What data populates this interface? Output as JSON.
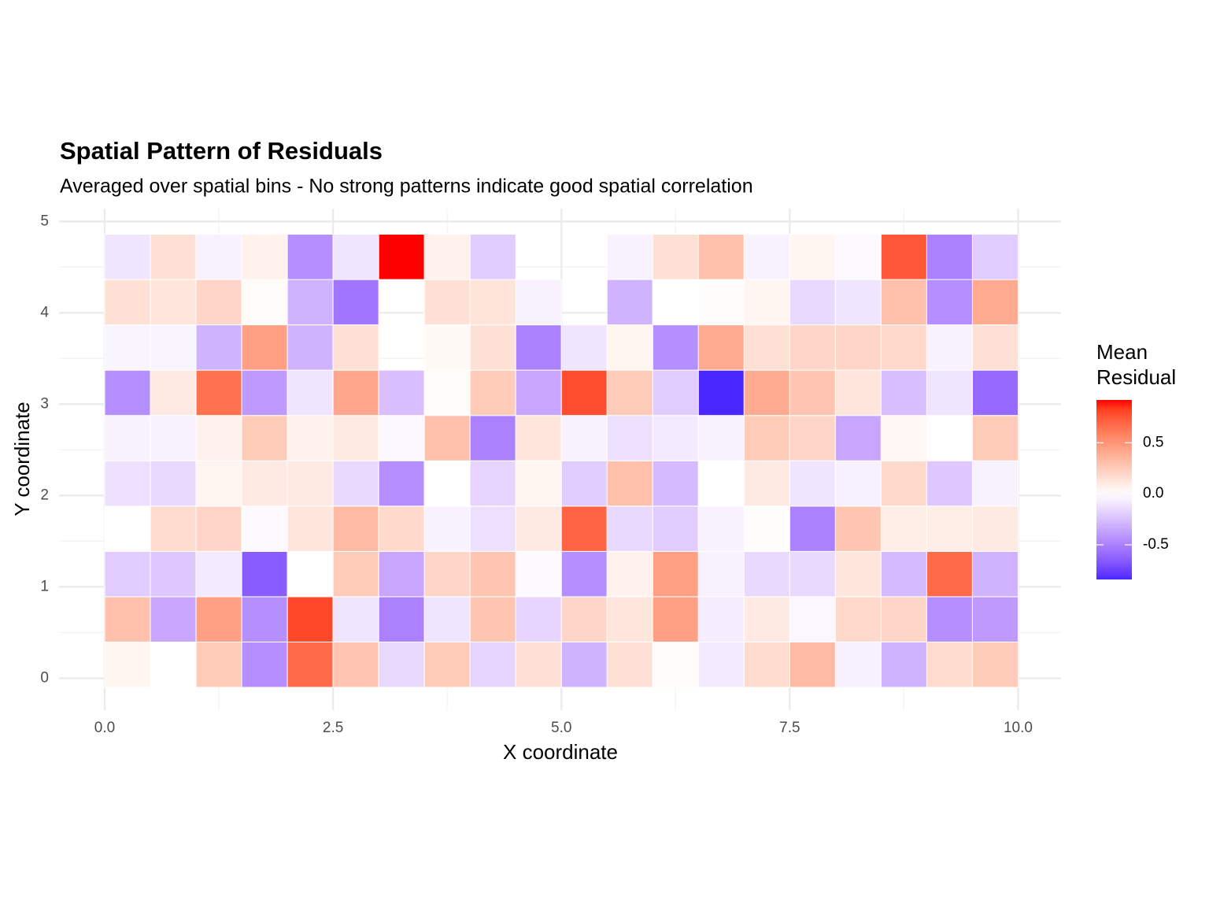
{
  "chart_data": {
    "type": "heatmap",
    "title": "Spatial Pattern of Residuals",
    "subtitle": "Averaged over spatial bins - No strong patterns indicate good spatial correlation",
    "x_label": "X coordinate",
    "y_label": "Y coordinate",
    "legend_title_lines": [
      "Mean",
      "Residual"
    ],
    "x": [
      0.25,
      0.75,
      1.25,
      1.75,
      2.25,
      2.75,
      3.25,
      3.75,
      4.25,
      4.75,
      5.25,
      5.75,
      6.25,
      6.75,
      7.25,
      7.75,
      8.25,
      8.75,
      9.25,
      9.75
    ],
    "y": [
      0.148,
      0.644,
      1.14,
      1.636,
      2.132,
      2.628,
      3.124,
      3.62,
      4.116,
      4.612
    ],
    "z": [
      [
        0.05,
        0,
        0.25,
        -0.45,
        0.68,
        0.28,
        -0.15,
        0.25,
        -0.17,
        0.15,
        -0.3,
        0.15,
        0.02,
        -0.08,
        0.17,
        0.33,
        -0.06,
        -0.3,
        0.17,
        0.25
      ],
      [
        0.3,
        -0.35,
        0.45,
        -0.45,
        0.8,
        -0.1,
        -0.5,
        -0.1,
        0.28,
        -0.17,
        0.2,
        0.12,
        0.45,
        -0.07,
        0.1,
        -0.03,
        0.18,
        0.2,
        -0.45,
        -0.4
      ],
      [
        -0.2,
        -0.22,
        -0.08,
        -0.65,
        0,
        0.25,
        -0.35,
        0.2,
        0.28,
        -0.02,
        -0.45,
        0.07,
        0.45,
        -0.05,
        -0.15,
        -0.15,
        0.12,
        -0.27,
        0.68,
        -0.3
      ],
      [
        0,
        0.17,
        0.2,
        -0.02,
        0.12,
        0.33,
        0.18,
        -0.05,
        -0.12,
        0.1,
        0.7,
        -0.15,
        -0.2,
        -0.05,
        0.01,
        -0.5,
        0.28,
        0.08,
        0.08,
        0.1
      ],
      [
        -0.12,
        -0.15,
        0.05,
        0.1,
        0.1,
        -0.15,
        -0.45,
        0,
        -0.17,
        0.05,
        -0.2,
        0.3,
        -0.27,
        0,
        0.1,
        -0.1,
        -0.06,
        0.18,
        -0.22,
        -0.05
      ],
      [
        -0.05,
        -0.05,
        0.07,
        0.25,
        0.07,
        0.1,
        -0.03,
        0.3,
        -0.5,
        0.12,
        -0.05,
        -0.12,
        -0.08,
        -0.05,
        0.25,
        0.2,
        -0.35,
        0.04,
        0,
        0.25
      ],
      [
        -0.45,
        0.1,
        0.65,
        -0.4,
        -0.1,
        0.42,
        -0.25,
        0.02,
        0.25,
        -0.35,
        0.78,
        0.25,
        -0.2,
        -0.84,
        0.4,
        0.28,
        0.12,
        -0.25,
        -0.1,
        -0.6
      ],
      [
        -0.04,
        -0.04,
        -0.3,
        0.45,
        -0.3,
        0.15,
        null,
        0.03,
        0.15,
        -0.5,
        -0.1,
        0.05,
        -0.45,
        0.4,
        0.15,
        0.2,
        0.2,
        0.18,
        -0.05,
        0.15
      ],
      [
        0.15,
        0.12,
        0.2,
        0.02,
        -0.3,
        -0.55,
        null,
        0.15,
        0.13,
        -0.05,
        null,
        -0.3,
        0,
        0.01,
        0.05,
        -0.15,
        -0.1,
        0.3,
        -0.45,
        0.4
      ],
      [
        -0.1,
        0.15,
        -0.05,
        0.07,
        -0.45,
        -0.1,
        0.92,
        0.07,
        -0.2,
        null,
        null,
        -0.05,
        0.15,
        0.3,
        -0.05,
        0.05,
        -0.02,
        0.75,
        -0.5,
        -0.2
      ]
    ],
    "xlim": [
      -0.5,
      10.47
    ],
    "ylim": [
      -0.35,
      5.14
    ],
    "xticks": [
      {
        "value": 0,
        "label": "0.0"
      },
      2.5,
      {
        "value": 5,
        "label": "5.0"
      },
      7.5,
      {
        "value": 10,
        "label": "10.0"
      }
    ],
    "yticks": [
      0,
      1,
      2,
      3,
      4,
      5
    ],
    "fill_lim": [
      -0.84,
      0.92
    ],
    "fill_ticks": [
      0.5,
      {
        "value": 0,
        "label": "0.0"
      },
      -0.5
    ],
    "low_color": "#0000ff",
    "mid_color": "#ffffff",
    "high_color": "#ff0000",
    "grid": true
  }
}
